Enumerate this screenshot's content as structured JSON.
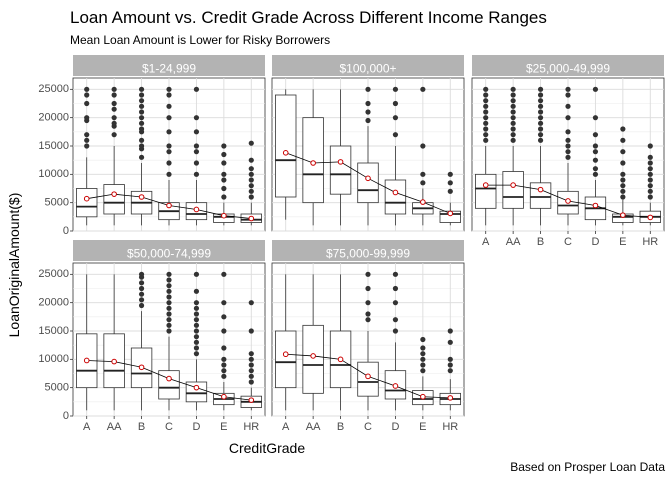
{
  "chart_data": {
    "type": "box",
    "title": "Loan Amount vs. Credit Grade Across Different Income Ranges",
    "subtitle": "Mean Loan Amount is Lower for Risky Borrowers",
    "caption": "Based on Prosper Loan Data",
    "xlabel": "CreditGrade",
    "ylabel": "LoanOriginalAmount($)",
    "categories": [
      "A",
      "AA",
      "B",
      "C",
      "D",
      "E",
      "HR"
    ],
    "ylim": [
      0,
      27000
    ],
    "yticks": [
      0,
      5000,
      10000,
      15000,
      20000,
      25000
    ],
    "grid": true,
    "mean_point_color": "#cc0000",
    "strip_color": "#b3b3b3",
    "panels": [
      {
        "label": "$1-24,999",
        "boxes": [
          {
            "min": 1000,
            "q1": 2500,
            "median": 4300,
            "q3": 7500,
            "max": 13000,
            "outliers": [
              15000,
              16000,
              17000,
              19500,
              20000,
              22500,
              24000,
              25000
            ]
          },
          {
            "min": 1000,
            "q1": 3000,
            "median": 5000,
            "q3": 8200,
            "max": 15000,
            "outliers": [
              17000,
              18500,
              19000,
              20000,
              21500,
              22500,
              24000,
              25000
            ]
          },
          {
            "min": 1000,
            "q1": 3000,
            "median": 5000,
            "q3": 7000,
            "max": 12000,
            "outliers": [
              13000,
              14500,
              15000,
              16000,
              17500,
              18000,
              19000,
              20000,
              21000,
              22000,
              23000,
              24000,
              25000
            ]
          },
          {
            "min": 1000,
            "q1": 2000,
            "median": 3500,
            "q3": 5000,
            "max": 9000,
            "outliers": [
              10000,
              12000,
              14000,
              15000,
              17500,
              20000,
              22000,
              24000,
              25000
            ]
          },
          {
            "min": 1000,
            "q1": 2000,
            "median": 3000,
            "q3": 5000,
            "max": 9000,
            "outliers": [
              10000,
              12000,
              14000,
              15000,
              17500,
              20000,
              25000
            ]
          },
          {
            "min": 1000,
            "q1": 1500,
            "median": 2500,
            "q3": 3000,
            "max": 5000,
            "outliers": [
              6000,
              7500,
              9000,
              10000,
              12000,
              13500,
              15000
            ]
          },
          {
            "min": 1000,
            "q1": 1500,
            "median": 2000,
            "q3": 3000,
            "max": 5000,
            "outliers": [
              6000,
              7000,
              8000,
              9000,
              10000,
              11000,
              12500,
              15500
            ]
          }
        ],
        "means": [
          5700,
          6500,
          6000,
          4500,
          3800,
          2700,
          2200
        ]
      },
      {
        "label": "$100,000+",
        "boxes": [
          {
            "min": 2000,
            "q1": 6000,
            "median": 12500,
            "q3": 24000,
            "max": 25000,
            "outliers": []
          },
          {
            "min": 1000,
            "q1": 5000,
            "median": 10000,
            "q3": 20000,
            "max": 25000,
            "outliers": []
          },
          {
            "min": 1000,
            "q1": 6500,
            "median": 10000,
            "q3": 15000,
            "max": 25000,
            "outliers": []
          },
          {
            "min": 1000,
            "q1": 5000,
            "median": 7200,
            "q3": 12000,
            "max": 18500,
            "outliers": [
              19500,
              21000,
              22500,
              25000
            ]
          },
          {
            "min": 1000,
            "q1": 3000,
            "median": 5000,
            "q3": 9000,
            "max": 15000,
            "outliers": [
              17000,
              20000,
              22500,
              25000
            ]
          },
          {
            "min": 1000,
            "q1": 3000,
            "median": 4000,
            "q3": 5000,
            "max": 7500,
            "outliers": [
              8500,
              10000,
              15000,
              25000
            ]
          },
          {
            "min": 1000,
            "q1": 1500,
            "median": 3000,
            "q3": 3500,
            "max": 5000,
            "outliers": [
              7000,
              8500,
              10000
            ]
          }
        ],
        "means": [
          13800,
          12000,
          12200,
          9300,
          6800,
          5100,
          3100
        ]
      },
      {
        "label": "$25,000-49,999",
        "boxes": [
          {
            "min": 1000,
            "q1": 4000,
            "median": 7500,
            "q3": 10000,
            "max": 15000,
            "outliers": [
              16000,
              17000,
              18000,
              19000,
              20000,
              21000,
              22000,
              23000,
              24000,
              25000
            ]
          },
          {
            "min": 1000,
            "q1": 4000,
            "median": 6000,
            "q3": 10500,
            "max": 15000,
            "outliers": [
              16000,
              17000,
              18000,
              19000,
              20000,
              21000,
              22000,
              23000,
              24000,
              25000
            ]
          },
          {
            "min": 1000,
            "q1": 4000,
            "median": 6000,
            "q3": 8500,
            "max": 15000,
            "outliers": [
              16000,
              17000,
              18000,
              19000,
              20000,
              21000,
              22000,
              23000,
              24000,
              25000
            ]
          },
          {
            "min": 1000,
            "q1": 3000,
            "median": 4500,
            "q3": 7000,
            "max": 12000,
            "outliers": [
              13000,
              14000,
              15000,
              16000,
              17500,
              20000,
              22000,
              24000,
              25000
            ]
          },
          {
            "min": 1000,
            "q1": 2000,
            "median": 4000,
            "q3": 6000,
            "max": 9000,
            "outliers": [
              10000,
              11000,
              12500,
              14000,
              15000,
              17000,
              20000,
              25000
            ]
          },
          {
            "min": 1000,
            "q1": 1500,
            "median": 2500,
            "q3": 3000,
            "max": 5500,
            "outliers": [
              6000,
              7000,
              8000,
              9000,
              10000,
              12000,
              14000,
              16000,
              18000
            ]
          },
          {
            "min": 1000,
            "q1": 1500,
            "median": 2500,
            "q3": 3500,
            "max": 5000,
            "outliers": [
              6000,
              7000,
              8000,
              9000,
              10000,
              11000,
              12000,
              13000,
              15000
            ]
          }
        ],
        "means": [
          8100,
          8100,
          7300,
          5300,
          4500,
          2800,
          2400
        ]
      },
      {
        "label": "$50,000-74,999",
        "boxes": [
          {
            "min": 1000,
            "q1": 5000,
            "median": 8000,
            "q3": 14500,
            "max": 25000,
            "outliers": []
          },
          {
            "min": 1000,
            "q1": 5000,
            "median": 8000,
            "q3": 14500,
            "max": 25000,
            "outliers": []
          },
          {
            "min": 1000,
            "q1": 5000,
            "median": 7500,
            "q3": 12000,
            "max": 18500,
            "outliers": [
              19500,
              20500,
              21500,
              22500,
              23500,
              24500,
              25000
            ]
          },
          {
            "min": 1000,
            "q1": 3000,
            "median": 5000,
            "q3": 8000,
            "max": 14000,
            "outliers": [
              15000,
              16000,
              17000,
              18000,
              19000,
              20000,
              21000,
              22000,
              23000,
              24000,
              25000
            ]
          },
          {
            "min": 1000,
            "q1": 2500,
            "median": 4000,
            "q3": 6000,
            "max": 10000,
            "outliers": [
              11000,
              12000,
              13000,
              14000,
              15000,
              16000,
              17000,
              18000,
              19000,
              20000,
              22000,
              25000
            ]
          },
          {
            "min": 1000,
            "q1": 2000,
            "median": 3000,
            "q3": 4000,
            "max": 6000,
            "outliers": [
              7000,
              8000,
              9000,
              10000,
              12000,
              15000,
              17500,
              20000,
              25000
            ]
          },
          {
            "min": 1000,
            "q1": 1500,
            "median": 2500,
            "q3": 3500,
            "max": 5000,
            "outliers": [
              6000,
              7000,
              8000,
              9000,
              10000,
              11000,
              15000,
              20000
            ]
          }
        ],
        "means": [
          9800,
          9600,
          8600,
          6600,
          5000,
          3400,
          2800
        ]
      },
      {
        "label": "$75,000-99,999",
        "boxes": [
          {
            "min": 1000,
            "q1": 5000,
            "median": 9500,
            "q3": 15000,
            "max": 25000,
            "outliers": []
          },
          {
            "min": 1000,
            "q1": 4000,
            "median": 9000,
            "q3": 16000,
            "max": 25000,
            "outliers": []
          },
          {
            "min": 1000,
            "q1": 5000,
            "median": 9000,
            "q3": 15000,
            "max": 25000,
            "outliers": []
          },
          {
            "min": 1000,
            "q1": 3500,
            "median": 6000,
            "q3": 9500,
            "max": 15000,
            "outliers": [
              17000,
              18000,
              20000,
              22500,
              25000
            ]
          },
          {
            "min": 1000,
            "q1": 3000,
            "median": 4500,
            "q3": 8000,
            "max": 13000,
            "outliers": [
              15000,
              17000,
              20000,
              22500,
              25000
            ]
          },
          {
            "min": 1000,
            "q1": 2000,
            "median": 3000,
            "q3": 4500,
            "max": 7000,
            "outliers": [
              8000,
              9000,
              10000,
              11000,
              12000,
              13500
            ]
          },
          {
            "min": 1000,
            "q1": 2000,
            "median": 3000,
            "q3": 4000,
            "max": 6500,
            "outliers": [
              8000,
              9000,
              10000,
              13000,
              15000
            ]
          }
        ],
        "means": [
          10900,
          10600,
          10000,
          7000,
          5300,
          3400,
          3200
        ]
      }
    ]
  }
}
